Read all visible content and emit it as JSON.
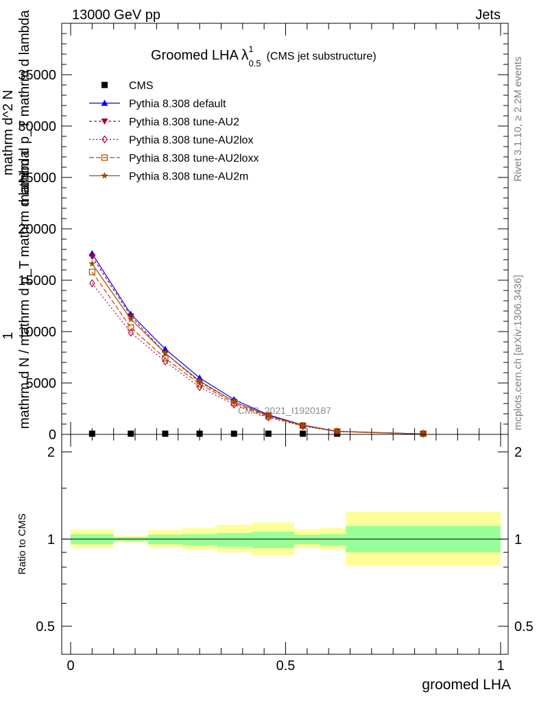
{
  "header": {
    "left": "13000 GeV pp",
    "right": "Jets"
  },
  "side_labels": {
    "rivet": "Rivet 3.1.10, ≥ 2.2M events",
    "mcplots": "mcplots.cern.ch [arXiv:1306.3436]"
  },
  "watermark": "CMS_2021_I1920187",
  "chart_data": [
    {
      "type": "line",
      "title": "Groomed LHA",
      "title_lambda": "λ",
      "title_sup": "1",
      "title_sub": "0.5",
      "title_suffix": "(CMS jet substructure)",
      "ylabel": {
        "one": "1",
        "line1": "mathrm d N / mathrm d p_T mathrm d lambda",
        "line2": "mathrm d^2 N",
        "line3": "mathrm d p_T mathrm d lambda"
      },
      "xlim": [
        0,
        1
      ],
      "ylim": [
        0,
        40000
      ],
      "y_ticks": [
        0,
        5000,
        10000,
        15000,
        20000,
        25000,
        30000,
        35000
      ],
      "legend_placement": "top-left",
      "x_bins": [
        [
          0.0,
          0.1
        ],
        [
          0.1,
          0.18
        ],
        [
          0.18,
          0.26
        ],
        [
          0.26,
          0.34
        ],
        [
          0.34,
          0.42
        ],
        [
          0.42,
          0.5
        ],
        [
          0.5,
          0.58
        ],
        [
          0.58,
          0.66
        ],
        [
          0.66,
          1.0
        ]
      ],
      "x": [
        0.05,
        0.14,
        0.22,
        0.3,
        0.38,
        0.46,
        0.54,
        0.62,
        0.82
      ],
      "series": [
        {
          "name": "CMS",
          "color": "#000000",
          "marker": "square",
          "dash": "",
          "values": [
            2,
            6,
            10,
            12,
            8,
            5,
            3,
            1,
            0.1
          ]
        },
        {
          "name": "Pythia 8.308 default",
          "color": "#0000ff",
          "marker": "triangle-up",
          "dash": "",
          "values": [
            17600,
            11700,
            8300,
            5500,
            3400,
            1900,
            900,
            300,
            40
          ]
        },
        {
          "name": "Pythia 8.308 tune-AU2",
          "color": "#a0003c",
          "marker": "triangle-down",
          "dash": "4,3",
          "values": [
            17300,
            11500,
            7900,
            5100,
            3200,
            1850,
            880,
            290,
            38
          ]
        },
        {
          "name": "Pythia 8.308 tune-AU2lox",
          "color": "#b4003c",
          "marker": "diamond-open",
          "dash": "2,3",
          "values": [
            14700,
            9900,
            7100,
            4600,
            2900,
            1650,
            800,
            270,
            36
          ]
        },
        {
          "name": "Pythia 8.308 tune-AU2loxx",
          "color": "#c04000",
          "marker": "square-open",
          "dash": "7,3",
          "values": [
            15800,
            10400,
            7400,
            4900,
            3050,
            1750,
            850,
            280,
            37
          ]
        },
        {
          "name": "Pythia 8.308 tune-AU2m",
          "color": "#965000",
          "marker": "star",
          "dash": "",
          "values": [
            16600,
            11200,
            7900,
            5200,
            3200,
            1820,
            870,
            285,
            38
          ]
        }
      ]
    },
    {
      "type": "area",
      "ylabel": "Ratio to CMS",
      "xlabel": "groomed LHA",
      "xlim": [
        0,
        1
      ],
      "ylim": [
        0.4,
        2.3
      ],
      "log_scale": true,
      "y_ticks": [
        0.5,
        1,
        2
      ],
      "y_tick_labels": [
        "0.5",
        "1",
        "2"
      ],
      "x_ticks": [
        0,
        0.5,
        1
      ],
      "x_tick_labels": [
        "0",
        "0.5",
        "1"
      ],
      "reference_line": 1,
      "bands": {
        "inner_color": "#99ff99",
        "outer_color": "#ffff99",
        "bins": [
          {
            "lo": 0.0,
            "hi": 0.1,
            "inner": [
              0.96,
              1.04
            ],
            "outer": [
              0.93,
              1.08
            ]
          },
          {
            "lo": 0.1,
            "hi": 0.18,
            "inner": [
              0.985,
              1.015
            ],
            "outer": [
              0.975,
              1.025
            ]
          },
          {
            "lo": 0.18,
            "hi": 0.26,
            "inner": [
              0.96,
              1.035
            ],
            "outer": [
              0.935,
              1.075
            ]
          },
          {
            "lo": 0.26,
            "hi": 0.34,
            "inner": [
              0.95,
              1.04
            ],
            "outer": [
              0.92,
              1.09
            ]
          },
          {
            "lo": 0.34,
            "hi": 0.42,
            "inner": [
              0.94,
              1.05
            ],
            "outer": [
              0.9,
              1.12
            ]
          },
          {
            "lo": 0.42,
            "hi": 0.52,
            "inner": [
              0.93,
              1.06
            ],
            "outer": [
              0.88,
              1.14
            ]
          },
          {
            "lo": 0.52,
            "hi": 0.58,
            "inner": [
              0.96,
              1.035
            ],
            "outer": [
              0.93,
              1.08
            ]
          },
          {
            "lo": 0.58,
            "hi": 0.64,
            "inner": [
              0.95,
              1.04
            ],
            "outer": [
              0.92,
              1.09
            ]
          },
          {
            "lo": 0.64,
            "hi": 1.0,
            "inner": [
              0.9,
              1.11
            ],
            "outer": [
              0.81,
              1.24
            ]
          }
        ]
      }
    }
  ]
}
